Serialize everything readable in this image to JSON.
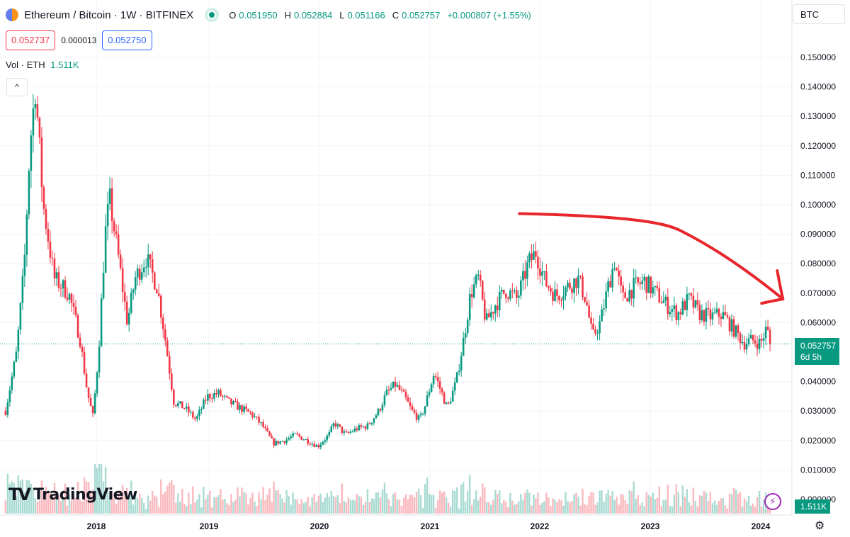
{
  "header": {
    "symbol_title": "Ethereum / Bitcoin · 1W · BITFINEX",
    "ohlc": [
      {
        "key": "O",
        "value": "0.051950"
      },
      {
        "key": "H",
        "value": "0.052884"
      },
      {
        "key": "L",
        "value": "0.051166"
      },
      {
        "key": "C",
        "value": "0.052757"
      },
      {
        "key": "",
        "value": "+0.000807 (+1.55%)"
      }
    ],
    "currency": "BTC"
  },
  "prices": {
    "sell": "0.052737",
    "spread": "0.000013",
    "buy": "0.052750"
  },
  "volume_indicator": {
    "label": "Vol · ETH",
    "value": "1.511K"
  },
  "last_price_label": {
    "price": "0.052757",
    "countdown": "6d 5h"
  },
  "volume_label": "1.511K",
  "logo_text": "TradingView",
  "colors": {
    "up": "#089981",
    "down": "#f23645",
    "annotation": "#e8262c",
    "grid": "#f0f3fa"
  },
  "icons": {
    "collapse": "chevron-up-icon",
    "alert": "lightning-icon",
    "settings": "gear-icon",
    "logo": "tradingview-logo-icon"
  },
  "chart_data": {
    "type": "candlestick",
    "interval": "1W",
    "y_axis": {
      "range": [
        0.0,
        0.155
      ],
      "ticks": [
        "0.150000",
        "0.140000",
        "0.130000",
        "0.120000",
        "0.110000",
        "0.100000",
        "0.090000",
        "0.080000",
        "0.070000",
        "0.060000",
        "0.040000",
        "0.030000",
        "0.020000",
        "0.010000"
      ],
      "partial_tick": "0.000000"
    },
    "x_axis": {
      "ticks": [
        "2018",
        "2019",
        "2020",
        "2021",
        "2022",
        "2023",
        "2024"
      ]
    },
    "grid": true,
    "last_close": 0.052757,
    "close_path": [
      {
        "t": 2017.18,
        "c": 0.03
      },
      {
        "t": 2017.28,
        "c": 0.05
      },
      {
        "t": 2017.35,
        "c": 0.08
      },
      {
        "t": 2017.4,
        "c": 0.12
      },
      {
        "t": 2017.45,
        "c": 0.14
      },
      {
        "t": 2017.52,
        "c": 0.1
      },
      {
        "t": 2017.62,
        "c": 0.075
      },
      {
        "t": 2017.75,
        "c": 0.07
      },
      {
        "t": 2017.85,
        "c": 0.055
      },
      {
        "t": 2017.92,
        "c": 0.036
      },
      {
        "t": 2017.97,
        "c": 0.028
      },
      {
        "t": 2018.02,
        "c": 0.05
      },
      {
        "t": 2018.08,
        "c": 0.09
      },
      {
        "t": 2018.12,
        "c": 0.102
      },
      {
        "t": 2018.2,
        "c": 0.082
      },
      {
        "t": 2018.28,
        "c": 0.06
      },
      {
        "t": 2018.35,
        "c": 0.075
      },
      {
        "t": 2018.45,
        "c": 0.082
      },
      {
        "t": 2018.55,
        "c": 0.072
      },
      {
        "t": 2018.62,
        "c": 0.055
      },
      {
        "t": 2018.7,
        "c": 0.033
      },
      {
        "t": 2018.8,
        "c": 0.031
      },
      {
        "t": 2018.9,
        "c": 0.027
      },
      {
        "t": 2019.0,
        "c": 0.035
      },
      {
        "t": 2019.1,
        "c": 0.036
      },
      {
        "t": 2019.2,
        "c": 0.033
      },
      {
        "t": 2019.3,
        "c": 0.031
      },
      {
        "t": 2019.4,
        "c": 0.029
      },
      {
        "t": 2019.5,
        "c": 0.025
      },
      {
        "t": 2019.6,
        "c": 0.019
      },
      {
        "t": 2019.7,
        "c": 0.02
      },
      {
        "t": 2019.8,
        "c": 0.022
      },
      {
        "t": 2019.9,
        "c": 0.02
      },
      {
        "t": 2020.0,
        "c": 0.018
      },
      {
        "t": 2020.1,
        "c": 0.022
      },
      {
        "t": 2020.15,
        "c": 0.026
      },
      {
        "t": 2020.25,
        "c": 0.022
      },
      {
        "t": 2020.35,
        "c": 0.024
      },
      {
        "t": 2020.45,
        "c": 0.025
      },
      {
        "t": 2020.55,
        "c": 0.03
      },
      {
        "t": 2020.62,
        "c": 0.036
      },
      {
        "t": 2020.7,
        "c": 0.039
      },
      {
        "t": 2020.78,
        "c": 0.035
      },
      {
        "t": 2020.85,
        "c": 0.03
      },
      {
        "t": 2020.92,
        "c": 0.027
      },
      {
        "t": 2020.97,
        "c": 0.032
      },
      {
        "t": 2021.05,
        "c": 0.043
      },
      {
        "t": 2021.1,
        "c": 0.038
      },
      {
        "t": 2021.17,
        "c": 0.031
      },
      {
        "t": 2021.25,
        "c": 0.04
      },
      {
        "t": 2021.32,
        "c": 0.055
      },
      {
        "t": 2021.38,
        "c": 0.07
      },
      {
        "t": 2021.45,
        "c": 0.075
      },
      {
        "t": 2021.52,
        "c": 0.06
      },
      {
        "t": 2021.6,
        "c": 0.066
      },
      {
        "t": 2021.7,
        "c": 0.071
      },
      {
        "t": 2021.8,
        "c": 0.068
      },
      {
        "t": 2021.9,
        "c": 0.08
      },
      {
        "t": 2021.97,
        "c": 0.084
      },
      {
        "t": 2022.05,
        "c": 0.074
      },
      {
        "t": 2022.15,
        "c": 0.069
      },
      {
        "t": 2022.25,
        "c": 0.072
      },
      {
        "t": 2022.35,
        "c": 0.075
      },
      {
        "t": 2022.42,
        "c": 0.068
      },
      {
        "t": 2022.48,
        "c": 0.055
      },
      {
        "t": 2022.55,
        "c": 0.06
      },
      {
        "t": 2022.62,
        "c": 0.072
      },
      {
        "t": 2022.68,
        "c": 0.081
      },
      {
        "t": 2022.75,
        "c": 0.068
      },
      {
        "t": 2022.85,
        "c": 0.072
      },
      {
        "t": 2022.95,
        "c": 0.074
      },
      {
        "t": 2023.05,
        "c": 0.07
      },
      {
        "t": 2023.15,
        "c": 0.066
      },
      {
        "t": 2023.25,
        "c": 0.063
      },
      {
        "t": 2023.35,
        "c": 0.068
      },
      {
        "t": 2023.45,
        "c": 0.063
      },
      {
        "t": 2023.55,
        "c": 0.062
      },
      {
        "t": 2023.65,
        "c": 0.063
      },
      {
        "t": 2023.75,
        "c": 0.058
      },
      {
        "t": 2023.85,
        "c": 0.053
      },
      {
        "t": 2023.92,
        "c": 0.054
      },
      {
        "t": 2024.0,
        "c": 0.053
      },
      {
        "t": 2024.05,
        "c": 0.058
      },
      {
        "t": 2024.1,
        "c": 0.0528
      }
    ],
    "annotation": {
      "type": "hand-drawn downward arrow",
      "from": {
        "t": 2021.82,
        "v": 0.097
      },
      "to": {
        "t": 2024.2,
        "v": 0.068
      }
    }
  }
}
